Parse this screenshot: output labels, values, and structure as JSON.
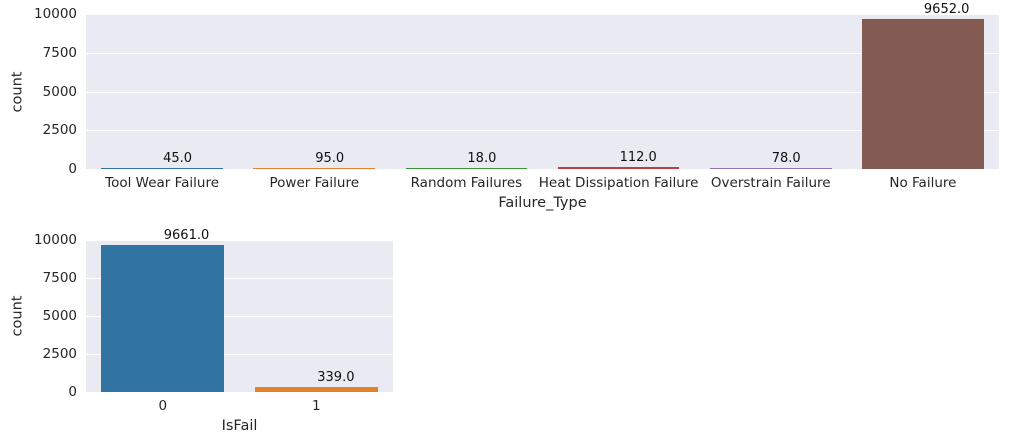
{
  "figure": {
    "background": "#ffffff",
    "plot_background": "#eaeaf2",
    "grid_color": "#ffffff",
    "text_color": "#262626",
    "annotation_color": "#111111"
  },
  "chart_data": [
    {
      "type": "bar",
      "title": "",
      "xlabel": "Failure_Type",
      "ylabel": "count",
      "categories": [
        "Tool Wear Failure",
        "Power Failure",
        "Random Failures",
        "Heat Dissipation Failure",
        "Overstrain Failure",
        "No Failure"
      ],
      "values": [
        45.0,
        95.0,
        18.0,
        112.0,
        78.0,
        9652.0
      ],
      "bar_labels": [
        "45.0",
        "95.0",
        "18.0",
        "112.0",
        "78.0",
        "9652.0"
      ],
      "bar_colors": [
        "#3274a1",
        "#e1812c",
        "#3a923a",
        "#c03d3e",
        "#9372b2",
        "#845b53"
      ],
      "ylim": [
        0,
        10000
      ],
      "yticks": [
        0,
        2500,
        5000,
        7500,
        10000
      ],
      "ytick_labels": [
        "0",
        "2500",
        "5000",
        "7500",
        "10000"
      ],
      "grid": true,
      "legend_position": "none"
    },
    {
      "type": "bar",
      "title": "",
      "xlabel": "IsFail",
      "ylabel": "count",
      "categories": [
        "0",
        "1"
      ],
      "values": [
        9661.0,
        339.0
      ],
      "bar_labels": [
        "9661.0",
        "339.0"
      ],
      "bar_colors": [
        "#3274a1",
        "#e1812c"
      ],
      "ylim": [
        0,
        10000
      ],
      "yticks": [
        0,
        2500,
        5000,
        7500,
        10000
      ],
      "ytick_labels": [
        "0",
        "2500",
        "5000",
        "7500",
        "10000"
      ],
      "grid": true,
      "legend_position": "none"
    }
  ]
}
